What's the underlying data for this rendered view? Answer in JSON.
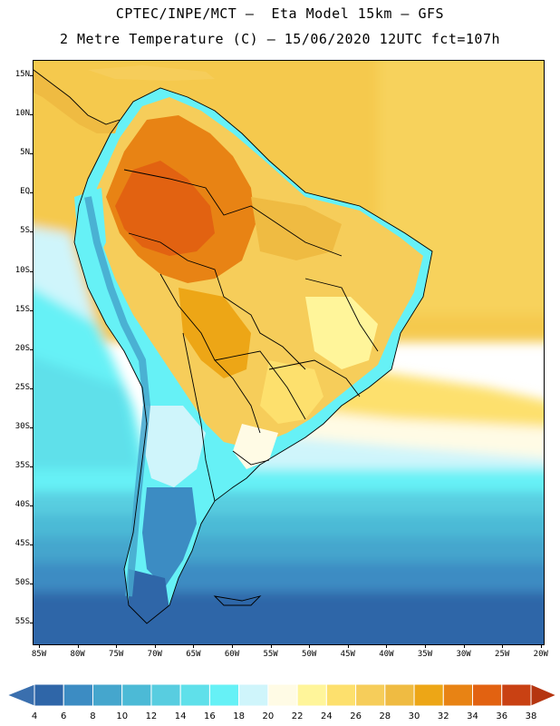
{
  "title_line1": "CPTEC/INPE/MCT –  Eta Model 15km – GFS",
  "title_line2": "2 Metre Temperature (C) – 15/06/2020 12UTC fct=107h",
  "lat_labels": [
    "15N",
    "10N",
    "5N",
    "EQ",
    "5S",
    "10S",
    "15S",
    "20S",
    "25S",
    "30S",
    "35S",
    "40S",
    "45S",
    "50S",
    "55S"
  ],
  "lon_labels": [
    "85W",
    "80W",
    "75W",
    "70W",
    "65W",
    "60W",
    "55W",
    "50W",
    "45W",
    "40W",
    "35W",
    "30W",
    "25W",
    "20W"
  ],
  "colorbar": {
    "labels": [
      "4",
      "6",
      "8",
      "10",
      "12",
      "14",
      "16",
      "18",
      "20",
      "22",
      "24",
      "26",
      "28",
      "30",
      "32",
      "34",
      "36",
      "38"
    ],
    "colors": [
      "#3a6fae",
      "#2f66a8",
      "#3c8cc3",
      "#45a6cd",
      "#4cbad6",
      "#58cde0",
      "#5fe0ea",
      "#66f1f6",
      "#cff5fb",
      "#fffbe5",
      "#fff59a",
      "#fde06d",
      "#f6cd5a",
      "#efbb42",
      "#eda616",
      "#e88314",
      "#e26211",
      "#c94113",
      "#b53510"
    ]
  },
  "colors": {
    "land_border": "#000000",
    "map_frame": "#000000"
  }
}
